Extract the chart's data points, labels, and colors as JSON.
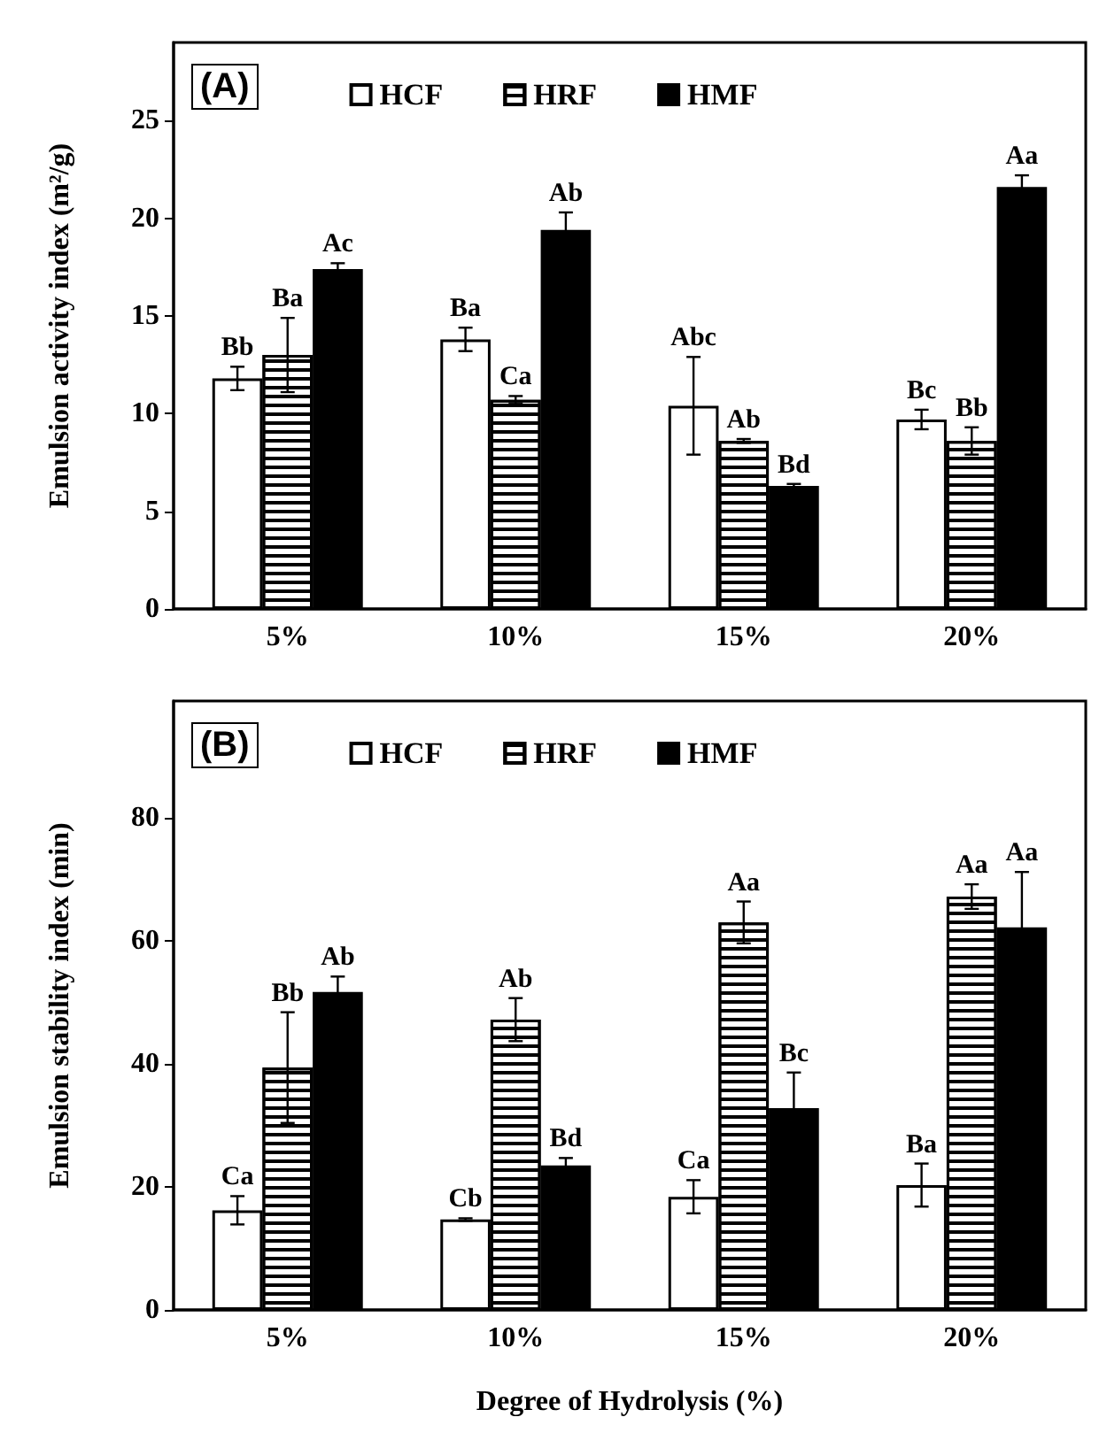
{
  "chart_data": [
    {
      "type": "bar",
      "title": "(A)",
      "ylabel": "Emulsion activity index (m²/g)",
      "categories": [
        "5%",
        "10%",
        "15%",
        "20%"
      ],
      "series": [
        {
          "name": "HCF",
          "color": "#ffffff",
          "values": [
            11.8,
            13.8,
            10.4,
            9.7
          ],
          "errors": [
            0.6,
            0.6,
            2.5,
            0.5
          ]
        },
        {
          "name": "HRF",
          "color": "#ffffff",
          "values": [
            13.0,
            10.7,
            8.6,
            8.6
          ],
          "errors": [
            1.9,
            0.2,
            0.1,
            0.7
          ]
        },
        {
          "name": "HMF",
          "color": "#000000",
          "values": [
            17.4,
            19.4,
            6.3,
            21.6
          ],
          "errors": [
            0.3,
            0.9,
            0.1,
            0.6
          ]
        }
      ],
      "ylim": [
        0,
        29
      ],
      "yticks": [
        0,
        5,
        10,
        15,
        20,
        25
      ],
      "grid": false,
      "legend": "top",
      "annotations": [
        "Bb",
        "Ba",
        "Ac",
        "Ba",
        "Ca",
        "Ab",
        "Abc",
        "Ab",
        "Bd",
        "Bc",
        "Bb",
        "Aa"
      ]
    },
    {
      "type": "bar",
      "title": "(B)",
      "xlabel": "Degree of Hydrolysis (%)",
      "ylabel": "Emulsion stability index (min)",
      "categories": [
        "5%",
        "10%",
        "15%",
        "20%"
      ],
      "series": [
        {
          "name": "HCF",
          "color": "#ffffff",
          "values": [
            16.2,
            14.7,
            18.4,
            20.3
          ],
          "errors": [
            2.3,
            0.2,
            2.7,
            3.5
          ]
        },
        {
          "name": "HRF",
          "color": "#ffffff",
          "values": [
            39.4,
            47.2,
            63.0,
            67.2
          ],
          "errors": [
            9.0,
            3.5,
            3.4,
            2.0
          ]
        },
        {
          "name": "HMF",
          "color": "#000000",
          "values": [
            51.7,
            23.5,
            32.8,
            62.2
          ],
          "errors": [
            2.5,
            1.2,
            5.8,
            9.0
          ]
        }
      ],
      "ylim": [
        0,
        99
      ],
      "yticks": [
        0,
        20,
        40,
        60,
        80
      ],
      "grid": false,
      "legend": "top",
      "annotations": [
        "Ca",
        "Bb",
        "Ab",
        "Cb",
        "Ab",
        "Bd",
        "Ca",
        "Aa",
        "Bc",
        "Ba",
        "Aa",
        "Aa"
      ]
    }
  ]
}
